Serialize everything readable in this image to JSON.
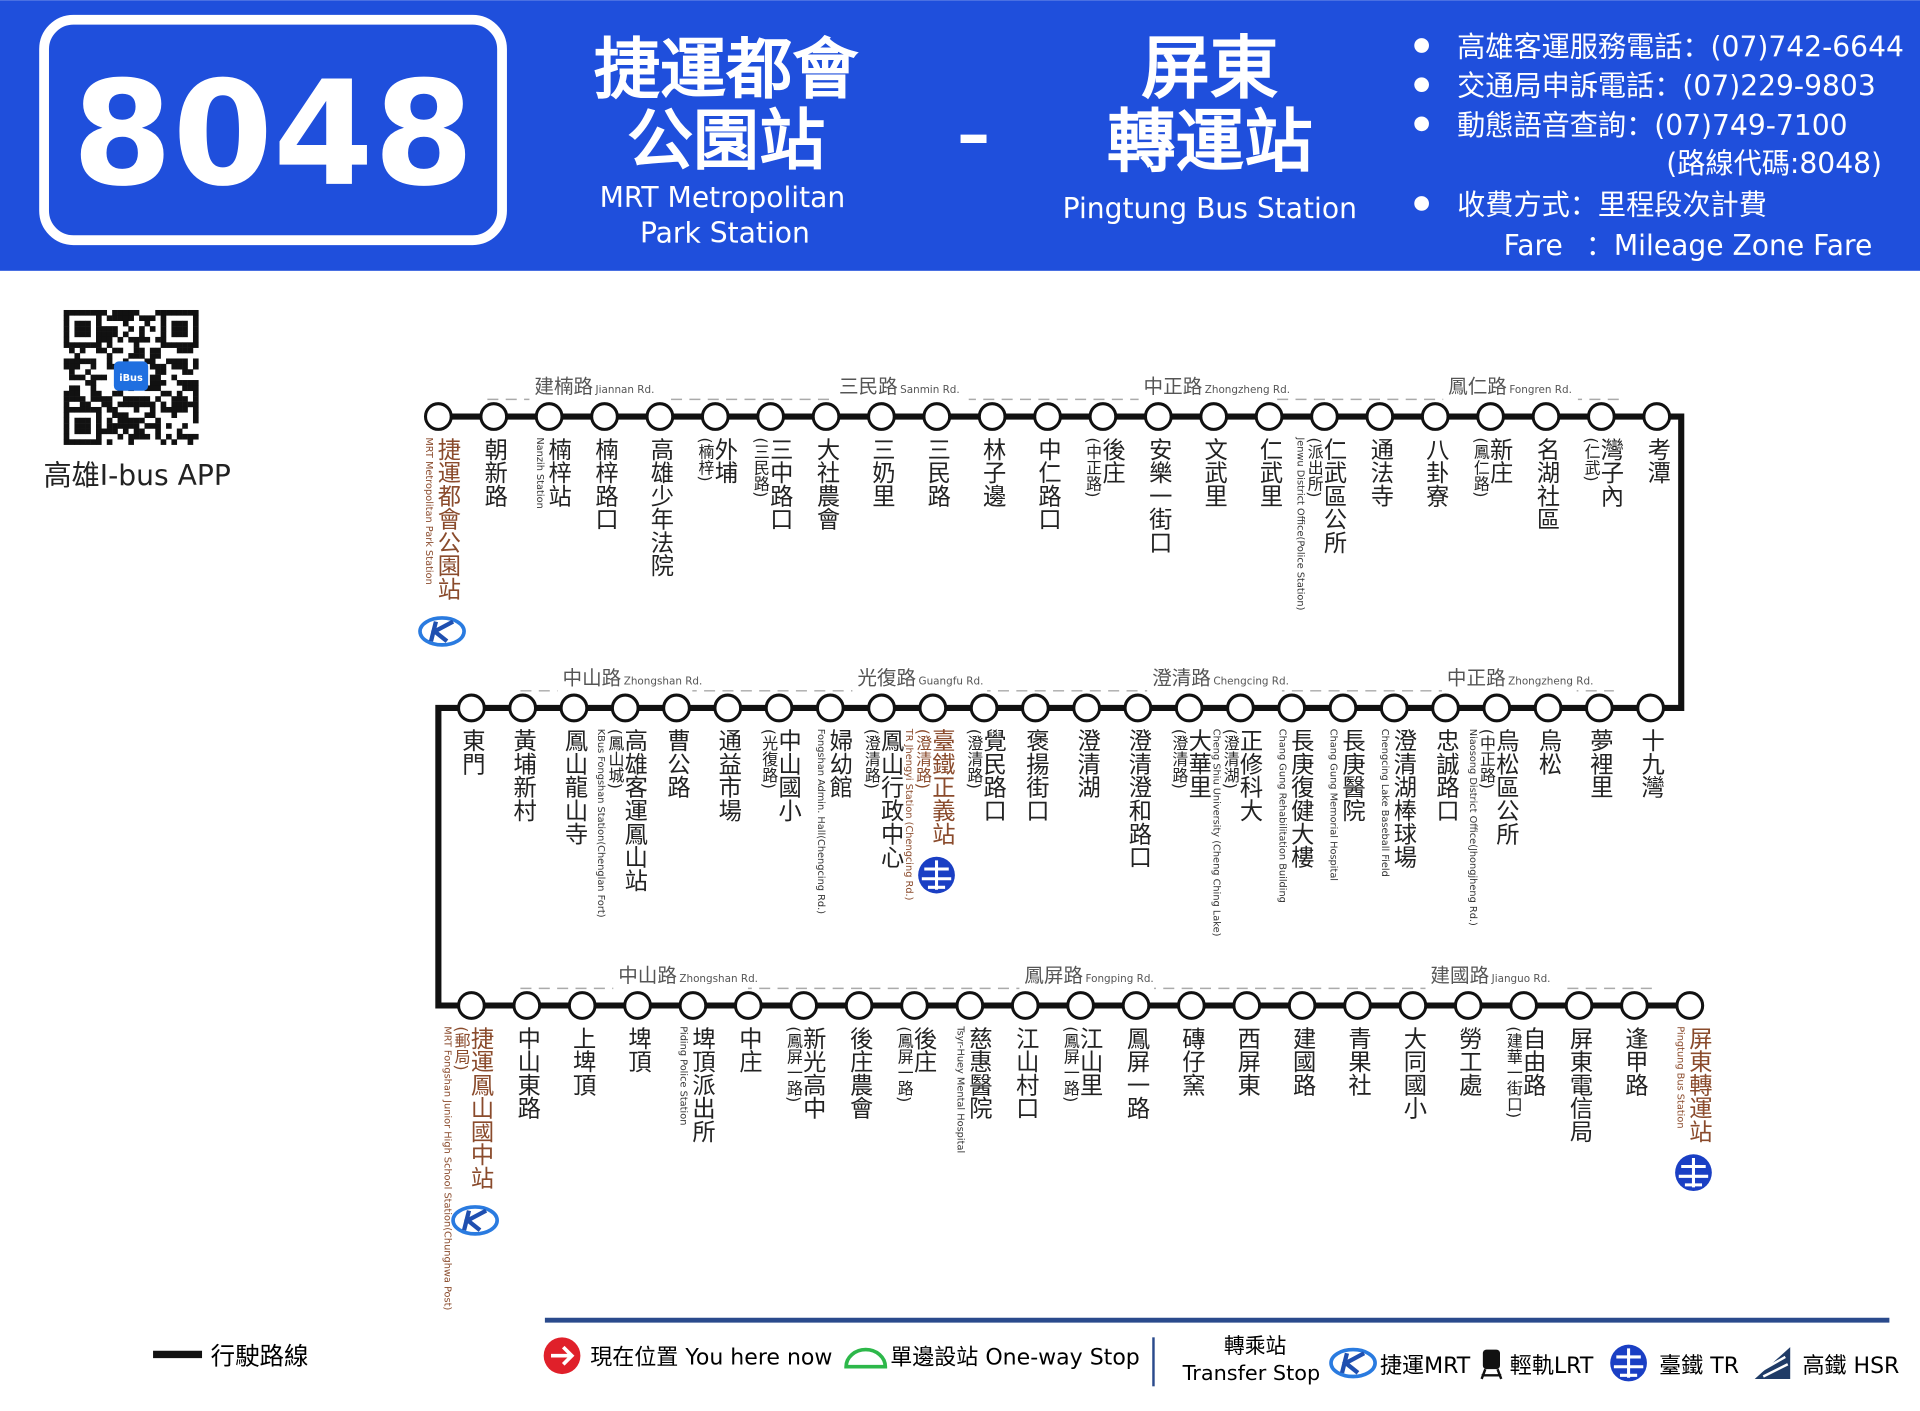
{
  "header": {
    "route_number": "8048",
    "origin": {
      "lines": [
        "捷運都會",
        "公園站"
      ],
      "en_lines": [
        "MRT Metropolitan",
        "Park Station"
      ]
    },
    "separator": "–",
    "destination": {
      "lines": [
        "屏東",
        "轉運站"
      ],
      "en_lines": [
        "Pingtung Bus Station"
      ]
    },
    "info": [
      "高雄客運服務電話：(07)742-6644",
      "交通局申訴電話：(07)229-9803",
      "動態語音查詢：(07)749-7100"
    ],
    "route_code": "(路線代碼:8048)",
    "fare": "收費方式：里程段次計費",
    "fare_en_label": "Fare",
    "fare_en": "：Mileage Zone Fare"
  },
  "app": {
    "label": "高雄I-bus APP",
    "badge": "iBus"
  },
  "route": {
    "rows": [
      {
        "roads": [
          {
            "name": "建楠路",
            "en": "Jiannan Rd."
          },
          {
            "name": "三民路",
            "en": "Sanmin Rd."
          },
          {
            "name": "中正路",
            "en": "Zhongzheng Rd."
          },
          {
            "name": "鳳仁路",
            "en": "Fongren Rd."
          }
        ],
        "stops": [
          {
            "name": "捷運都會公園站",
            "en": "MRT Metropolitan Park Station",
            "transfer": "mrt"
          },
          {
            "name": "朝新路"
          },
          {
            "name": "楠梓站",
            "en": "Nanzih Station"
          },
          {
            "name": "楠梓路口"
          },
          {
            "name": "高雄少年法院"
          },
          {
            "name": "外埔",
            "note": "(楠梓)"
          },
          {
            "name": "三中路口",
            "note": "(三民路)"
          },
          {
            "name": "大社農會"
          },
          {
            "name": "三奶里"
          },
          {
            "name": "三民路"
          },
          {
            "name": "林子邊"
          },
          {
            "name": "中仁路口"
          },
          {
            "name": "後庄",
            "note": "(中正路)"
          },
          {
            "name": "安樂一街口"
          },
          {
            "name": "文武里"
          },
          {
            "name": "仁武里"
          },
          {
            "name": "仁武區公所",
            "note": "(派出所)",
            "en": "Jenwu District Office(Police Station)"
          },
          {
            "name": "通法寺"
          },
          {
            "name": "八卦寮"
          },
          {
            "name": "新庄",
            "note": "(鳳仁路)"
          },
          {
            "name": "名湖社區"
          },
          {
            "name": "灣子內",
            "note": "(仁武)"
          },
          {
            "name": "考潭"
          }
        ]
      },
      {
        "roads": [
          {
            "name": "中山路",
            "en": "Zhongshan Rd."
          },
          {
            "name": "光復路",
            "en": "Guangfu Rd."
          },
          {
            "name": "澄清路",
            "en": "Chengcing Rd."
          },
          {
            "name": "中正路",
            "en": "Zhongzheng Rd."
          }
        ],
        "stops": [
          {
            "name": "東門"
          },
          {
            "name": "黃埔新村"
          },
          {
            "name": "鳳山龍山寺"
          },
          {
            "name": "高雄客運鳳山站",
            "note": "(鳳山城)",
            "en": "KBus Fongshan Station(Chenglan Fort)"
          },
          {
            "name": "曹公路"
          },
          {
            "name": "通益市場"
          },
          {
            "name": "中山國小",
            "note": "(光復路)"
          },
          {
            "name": "婦幼館",
            "en": "Fongshan Admin. Hall(Chengcing Rd.)"
          },
          {
            "name": "鳳山行政中心",
            "note": "(澄清路)"
          },
          {
            "name": "臺鐵正義站",
            "note": "(澄清路)",
            "en": "TR Jhengyi Station (Chengcing Rd.)",
            "transfer": "tr"
          },
          {
            "name": "覺民路口",
            "note": "(澄清路)"
          },
          {
            "name": "褒揚街口"
          },
          {
            "name": "澄清湖"
          },
          {
            "name": "澄清澄和路口"
          },
          {
            "name": "大華里",
            "note": "(澄清路)"
          },
          {
            "name": "正修科大",
            "note": "(澄清湖)",
            "en": "Cheng Shiu University (Cheng Ching Lake)"
          },
          {
            "name": "長庚復健大樓",
            "en": "Chang Gung Rehabilitation Building"
          },
          {
            "name": "長庚醫院",
            "en": "Chang Gung Memorial Hospital"
          },
          {
            "name": "澄清湖棒球場",
            "en": "Chengcing Lake Baseball Field"
          },
          {
            "name": "忠誠路口"
          },
          {
            "name": "烏松區公所",
            "note": "(中正路)",
            "en": "Niaosong District Office(Jhongjheng Rd.)"
          },
          {
            "name": "烏松"
          },
          {
            "name": "夢裡里"
          },
          {
            "name": "十九灣"
          }
        ]
      },
      {
        "roads": [
          {
            "name": "中山路",
            "en": "Zhongshan Rd."
          },
          {
            "name": "鳳屏路",
            "en": "Fongping Rd."
          },
          {
            "name": "建國路",
            "en": "Jianguo Rd."
          }
        ],
        "stops": [
          {
            "name": "捷運鳳山國中站",
            "note": "(郵局)",
            "en": "MRT Fongshan Junior High School Station(Chunghwa Post)",
            "transfer": "mrt"
          },
          {
            "name": "中山東路"
          },
          {
            "name": "上埤頂"
          },
          {
            "name": "埤頂"
          },
          {
            "name": "埤頂派出所",
            "en": "Piding Police Station"
          },
          {
            "name": "中庄"
          },
          {
            "name": "新光高中",
            "note": "(鳳屏一路)"
          },
          {
            "name": "後庄農會"
          },
          {
            "name": "後庄",
            "note": "(鳳屏一路)"
          },
          {
            "name": "慈惠醫院",
            "en": "Tsyr-Huey Mental Hospital"
          },
          {
            "name": "江山村口"
          },
          {
            "name": "江山里",
            "note": "(鳳屏一路)"
          },
          {
            "name": "鳳屏一路"
          },
          {
            "name": "磚仔窯"
          },
          {
            "name": "西屏東"
          },
          {
            "name": "建國路"
          },
          {
            "name": "青果社"
          },
          {
            "name": "大同國小"
          },
          {
            "name": "勞工處"
          },
          {
            "name": "自由路",
            "note": "(建華一街口)"
          },
          {
            "name": "屏東電信局"
          },
          {
            "name": "逢甲路"
          },
          {
            "name": "屏東轉運站",
            "en": "Pingtung Bus Station",
            "transfer": "tr"
          }
        ]
      }
    ]
  },
  "legend": {
    "route_line": "行駛路線",
    "current": "現在位置 You here now",
    "one_way": "單邊設站 One-way Stop",
    "transfer": [
      "轉乘站",
      "Transfer Stop"
    ],
    "modes": [
      "捷運MRT",
      "輕軌LRT",
      "臺鐵 TR",
      "高鐵 HSR"
    ]
  }
}
